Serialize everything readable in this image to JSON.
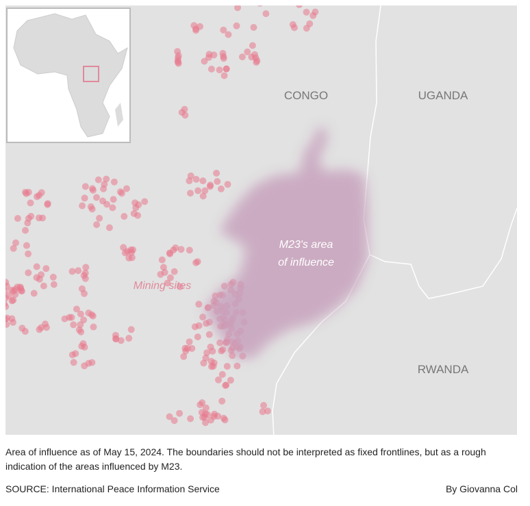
{
  "labels": {
    "congo": "CONGO",
    "uganda": "UGANDA",
    "rwanda": "RWANDA",
    "area_line1": "M23's area",
    "area_line2": "of influence",
    "mining": "Mining sites"
  },
  "caption": "Area of influence as of May 15, 2024. The boundaries should not be interpreted as fixed frontlines, but as a rough indication of the areas influenced by M23.",
  "source": "SOURCE: International Peace Information Service",
  "byline": "By Giovanna Col"
}
